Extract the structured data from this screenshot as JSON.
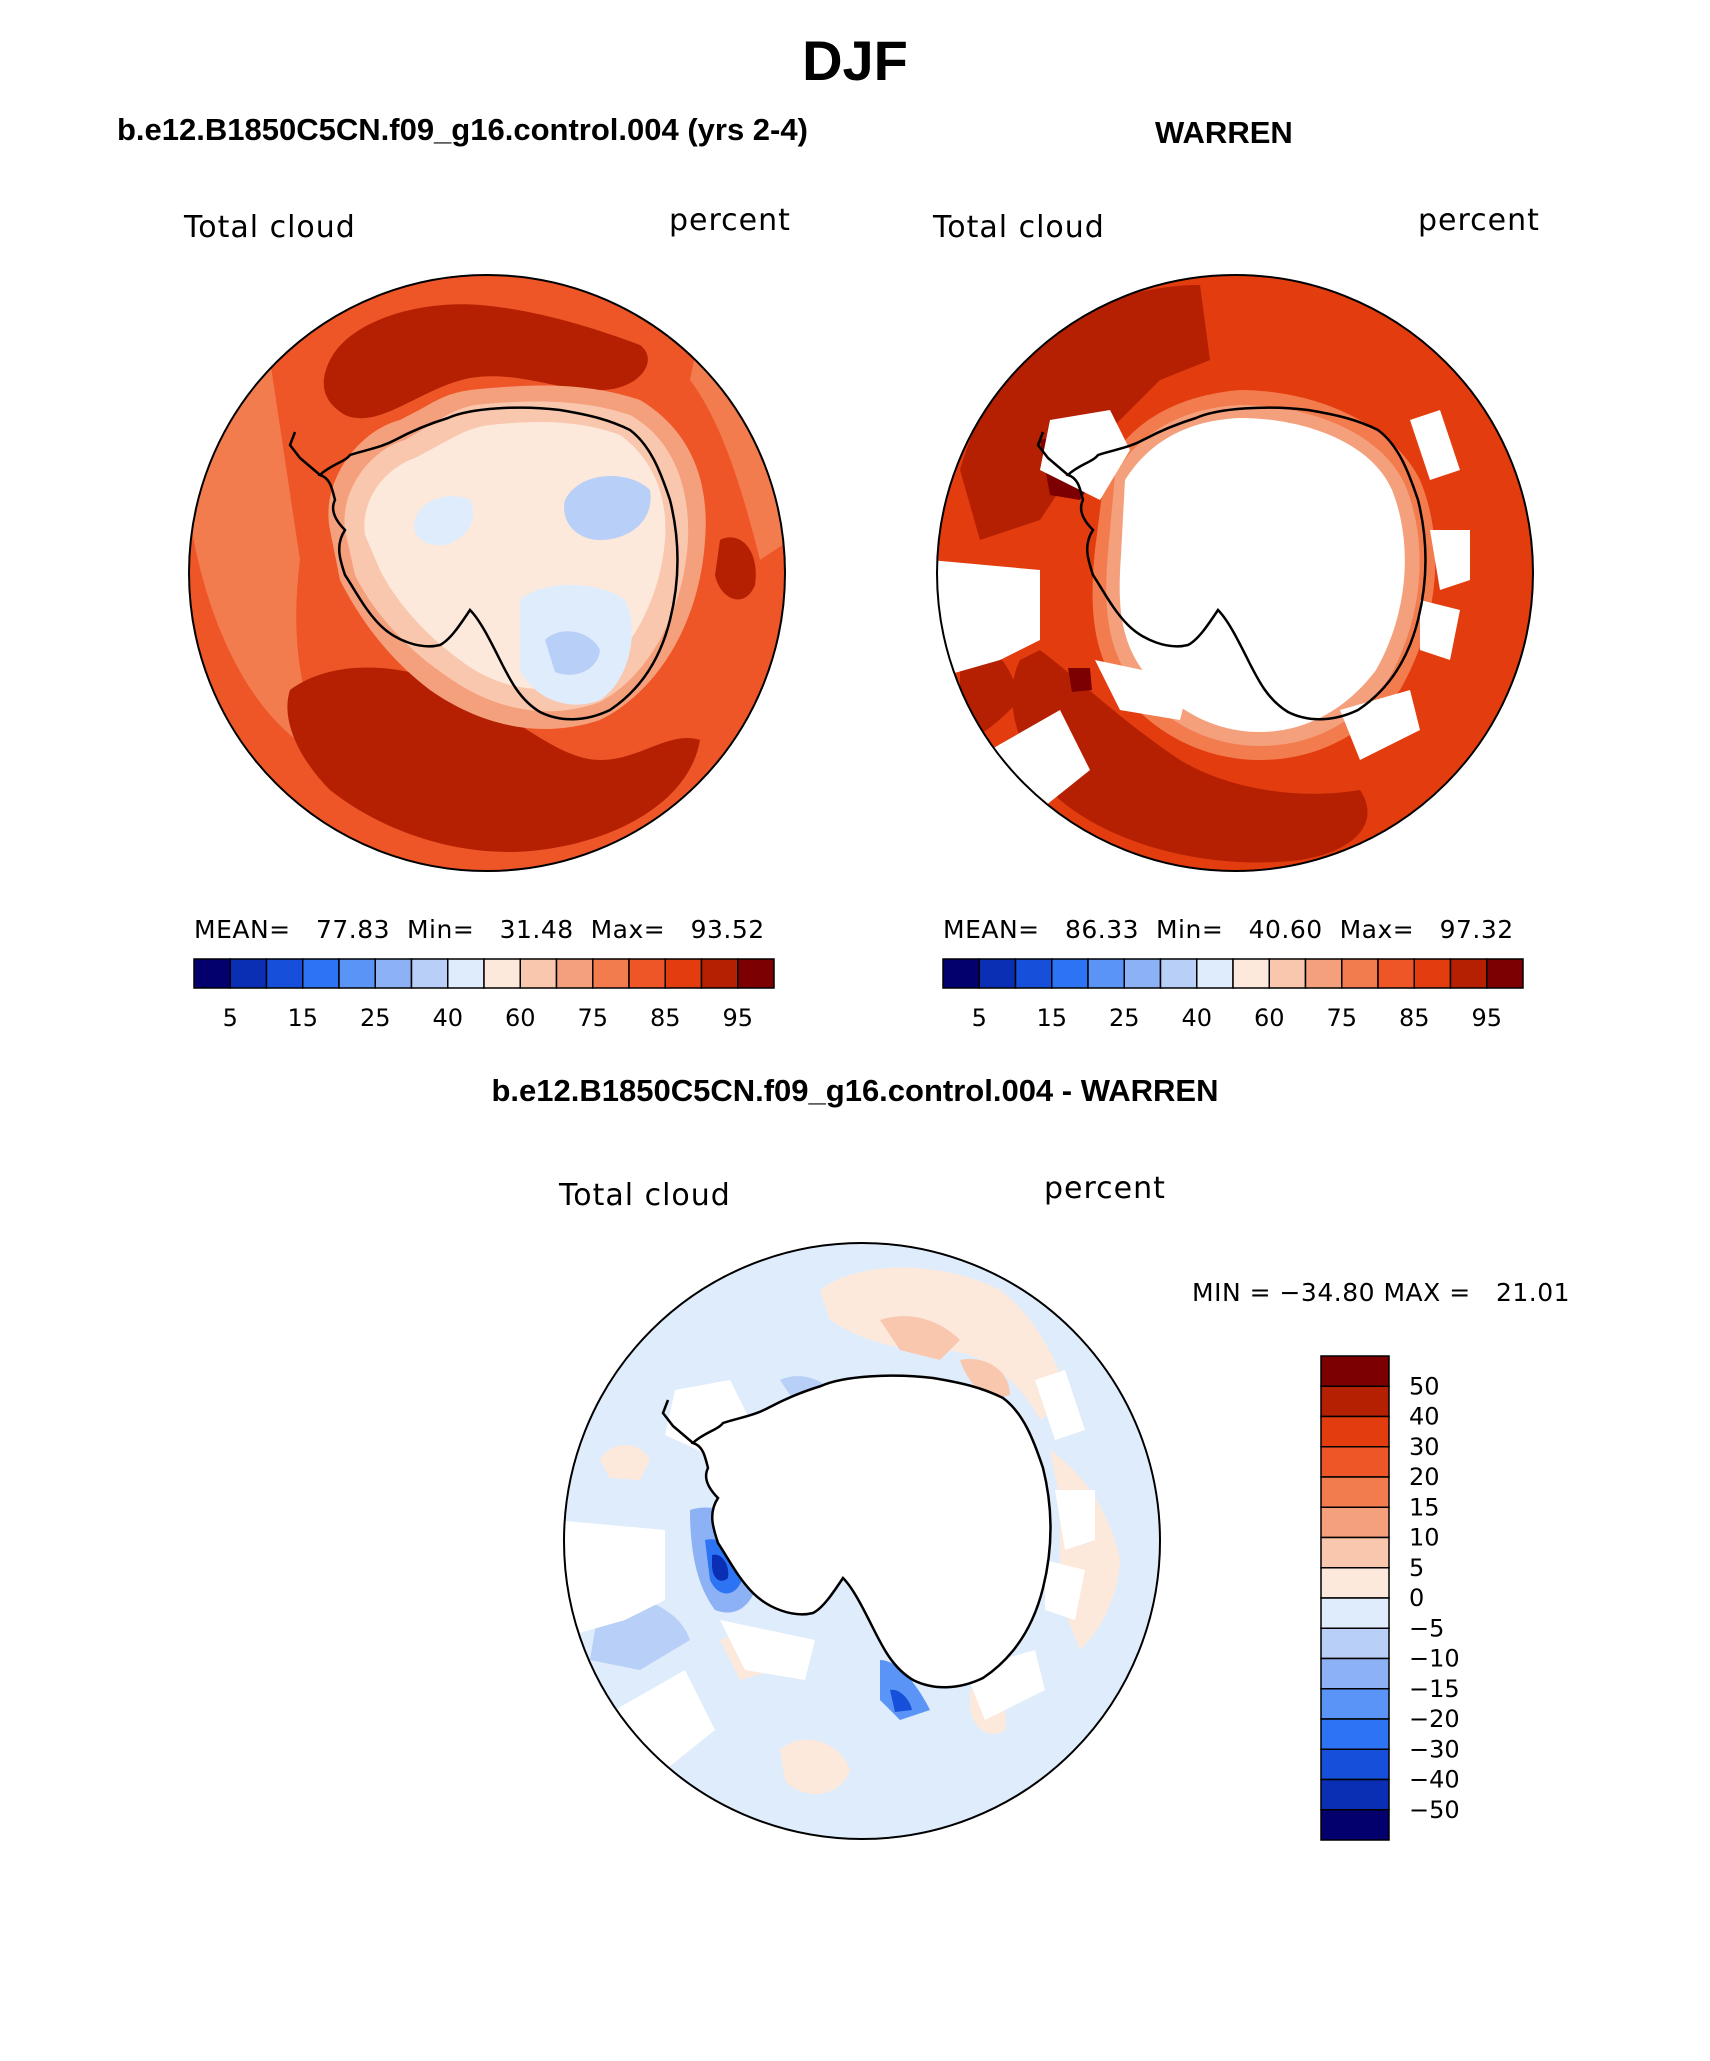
{
  "figure": {
    "title": "DJF",
    "panel_left_title": "b.e12.B1850C5CN.f09_g16.control.004 (yrs 2-4)",
    "panel_right_title": "WARREN",
    "panel_diff_title": "b.e12.B1850C5CN.f09_g16.control.004 - WARREN"
  },
  "panels": {
    "left": {
      "variable": "Total cloud",
      "units": "percent",
      "mean_label": "MEAN=",
      "mean": "77.83",
      "min_label": "Min=",
      "min": "31.48",
      "max_label": "Max=",
      "max": "93.52"
    },
    "right": {
      "variable": "Total cloud",
      "units": "percent",
      "mean_label": "MEAN=",
      "mean": "86.33",
      "min_label": "Min=",
      "min": "40.60",
      "max_label": "Max=",
      "max": "97.32"
    },
    "diff": {
      "variable": "Total cloud",
      "units": "percent",
      "minmax_text": "MIN = −34.80 MAX =   21.01"
    }
  },
  "colorbars": {
    "absolute": {
      "colors": [
        "#03006e",
        "#0a2fb4",
        "#1650da",
        "#2c74f4",
        "#5a94f7",
        "#8db1f5",
        "#b8cff7",
        "#dfecfb",
        "#fde9dc",
        "#f9c7ad",
        "#f5a07d",
        "#f27c4e",
        "#ee5627",
        "#e33c0e",
        "#b52002",
        "#7c0001"
      ],
      "labels": [
        "5",
        "15",
        "25",
        "40",
        "60",
        "75",
        "85",
        "95"
      ]
    },
    "difference": {
      "colors_top_to_bottom": [
        "#7c0001",
        "#b52002",
        "#e33c0e",
        "#ee5627",
        "#f27c4e",
        "#f5a07d",
        "#f9c7ad",
        "#fde9dc",
        "#dfecfb",
        "#b8cff7",
        "#8db1f5",
        "#5a94f7",
        "#2c74f4",
        "#1650da",
        "#0a2fb4",
        "#03006e"
      ],
      "labels": [
        "50",
        "40",
        "30",
        "20",
        "15",
        "10",
        "5",
        "0",
        "−5",
        "−10",
        "−15",
        "−20",
        "−30",
        "−40",
        "−50"
      ]
    }
  }
}
